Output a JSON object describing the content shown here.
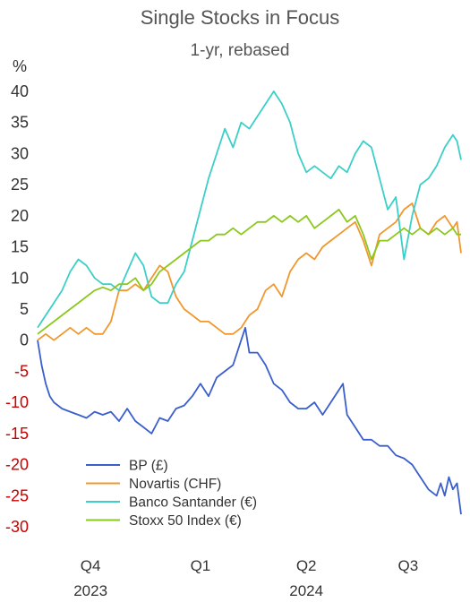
{
  "chart_data": {
    "type": "line",
    "title": "Single Stocks in Focus",
    "subtitle": "1-yr, rebased",
    "ylabel": "%",
    "ylim": [
      -30,
      40
    ],
    "yticks": [
      40,
      35,
      30,
      25,
      20,
      15,
      10,
      5,
      0,
      -5,
      -10,
      -15,
      -20,
      -25,
      -30
    ],
    "negative_tick_color": "#cc0000",
    "positive_tick_color": "#333333",
    "x_domain": [
      0,
      52
    ],
    "x_quarter_labels": [
      {
        "label": "Q4",
        "x": 6.5
      },
      {
        "label": "Q1",
        "x": 20
      },
      {
        "label": "Q2",
        "x": 33
      },
      {
        "label": "Q3",
        "x": 45.5
      }
    ],
    "x_year_labels": [
      {
        "label": "2023",
        "x": 6.5
      },
      {
        "label": "2024",
        "x": 33
      }
    ],
    "legend_position": "bottom-left",
    "series": [
      {
        "name": "BP (£)",
        "color": "#3a5fcd",
        "x": [
          0,
          0.5,
          1,
          1.5,
          2,
          3,
          4,
          5,
          6,
          7,
          8,
          9,
          10,
          11,
          12,
          13,
          14,
          15,
          16,
          17,
          18,
          19,
          20,
          21,
          22,
          23,
          24,
          25,
          25.5,
          26,
          27,
          28,
          29,
          30,
          31,
          32,
          33,
          34,
          35,
          36,
          37,
          37.5,
          38,
          39,
          40,
          41,
          42,
          43,
          44,
          45,
          46,
          47,
          48,
          49,
          49.5,
          50,
          50.5,
          51,
          51.5,
          52
        ],
        "y": [
          0,
          -4,
          -7,
          -9,
          -10,
          -11,
          -11.5,
          -12,
          -12.5,
          -11.5,
          -12,
          -11.5,
          -13,
          -11,
          -13,
          -14,
          -15,
          -12.5,
          -13,
          -11,
          -10.5,
          -9,
          -7,
          -9,
          -6,
          -5,
          -4,
          0,
          2,
          -2,
          -2,
          -4,
          -7,
          -8,
          -10,
          -11,
          -11,
          -10,
          -12,
          -10,
          -8,
          -7,
          -12,
          -14,
          -16,
          -16,
          -17,
          -17,
          -18.5,
          -19,
          -20,
          -22,
          -24,
          -25,
          -23,
          -25,
          -22,
          -24,
          -23,
          -28
        ]
      },
      {
        "name": "Novartis (CHF)",
        "color": "#f0982d",
        "x": [
          0,
          1,
          2,
          3,
          4,
          5,
          6,
          7,
          8,
          9,
          10,
          11,
          12,
          13,
          14,
          15,
          16,
          17,
          18,
          19,
          20,
          21,
          22,
          23,
          24,
          25,
          26,
          27,
          28,
          29,
          30,
          31,
          32,
          33,
          34,
          35,
          36,
          37,
          38,
          39,
          40,
          41,
          42,
          43,
          44,
          45,
          46,
          47,
          48,
          49,
          50,
          51,
          51.5,
          52
        ],
        "y": [
          0,
          1,
          0,
          1,
          2,
          1,
          2,
          1,
          1,
          3,
          8,
          8,
          9,
          8,
          10,
          12,
          11,
          7,
          5,
          4,
          3,
          3,
          2,
          1,
          1,
          2,
          4,
          5,
          8,
          9,
          7,
          11,
          13,
          14,
          13,
          15,
          16,
          17,
          18,
          19,
          16,
          12,
          17,
          18,
          19,
          21,
          22,
          18,
          17,
          19,
          20,
          18,
          19,
          14
        ]
      },
      {
        "name": "Banco Santander (€)",
        "color": "#3ccfc8",
        "x": [
          0,
          1,
          2,
          3,
          4,
          5,
          6,
          7,
          8,
          9,
          10,
          11,
          12,
          13,
          14,
          15,
          16,
          17,
          18,
          19,
          20,
          21,
          22,
          23,
          24,
          25,
          26,
          27,
          28,
          29,
          30,
          31,
          32,
          33,
          34,
          35,
          36,
          37,
          38,
          39,
          40,
          41,
          42,
          43,
          44,
          45,
          46,
          47,
          48,
          49,
          50,
          51,
          51.5,
          52
        ],
        "y": [
          2,
          4,
          6,
          8,
          11,
          13,
          12,
          10,
          9,
          9,
          8,
          11,
          14,
          12,
          7,
          6,
          6,
          9,
          11,
          16,
          21,
          26,
          30,
          34,
          31,
          35,
          34,
          36,
          38,
          40,
          38,
          35,
          30,
          27,
          28,
          27,
          26,
          28,
          27,
          30,
          32,
          31,
          26,
          21,
          23,
          13,
          20,
          25,
          26,
          28,
          31,
          33,
          32,
          29
        ]
      },
      {
        "name": "Stoxx 50 Index (€)",
        "color": "#8bc81d",
        "x": [
          0,
          1,
          2,
          3,
          4,
          5,
          6,
          7,
          8,
          9,
          10,
          11,
          12,
          13,
          14,
          15,
          16,
          17,
          18,
          19,
          20,
          21,
          22,
          23,
          24,
          25,
          26,
          27,
          28,
          29,
          30,
          31,
          32,
          33,
          34,
          35,
          36,
          37,
          38,
          39,
          40,
          41,
          42,
          43,
          44,
          45,
          46,
          47,
          48,
          49,
          50,
          51,
          51.5,
          52
        ],
        "y": [
          1,
          2,
          3,
          4,
          5,
          6,
          7,
          8,
          8.5,
          8,
          9,
          9,
          10,
          8,
          9,
          11,
          12,
          13,
          14,
          15,
          16,
          16,
          17,
          17,
          18,
          17,
          18,
          19,
          19,
          20,
          19,
          20,
          19,
          20,
          18,
          19,
          20,
          21,
          19,
          20,
          17,
          13,
          16,
          16,
          17,
          18,
          17,
          18,
          17,
          18,
          17,
          18,
          17,
          17
        ]
      }
    ]
  }
}
